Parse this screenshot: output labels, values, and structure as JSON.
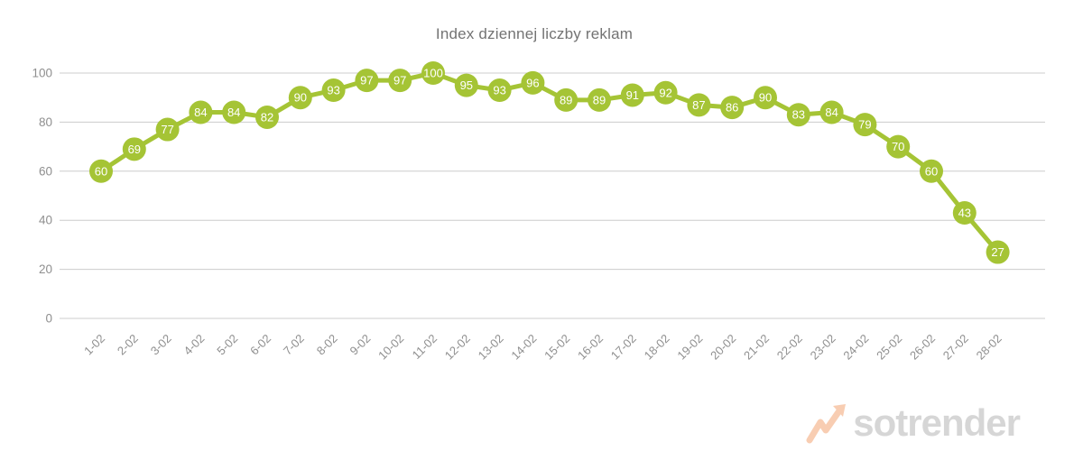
{
  "chart_data": {
    "type": "line",
    "title": "Index dziennej liczby reklam",
    "categories": [
      "1-02",
      "2-02",
      "3-02",
      "4-02",
      "5-02",
      "6-02",
      "7-02",
      "8-02",
      "9-02",
      "10-02",
      "11-02",
      "12-02",
      "13-02",
      "14-02",
      "15-02",
      "16-02",
      "17-02",
      "18-02",
      "19-02",
      "20-02",
      "21-02",
      "22-02",
      "23-02",
      "24-02",
      "25-02",
      "26-02",
      "27-02",
      "28-02"
    ],
    "values": [
      60,
      69,
      77,
      84,
      84,
      82,
      90,
      93,
      97,
      97,
      100,
      95,
      93,
      96,
      89,
      89,
      91,
      92,
      87,
      86,
      90,
      83,
      84,
      79,
      70,
      60,
      43,
      27
    ],
    "xlabel": "",
    "ylabel": "",
    "ylim": [
      0,
      100
    ],
    "yticks": [
      0,
      20,
      40,
      60,
      80,
      100
    ],
    "grid": true,
    "legend_position": "none",
    "point_labels_visible": true
  },
  "colors": {
    "series": "#a5c435",
    "gridline": "#cccccc",
    "axis_label": "#8f8f8f",
    "title": "#737373",
    "point_label": "#ffffff",
    "watermark_text": "#d6d6d6",
    "watermark_icon": "#f8cdb2"
  },
  "watermark": {
    "text": "sotrender",
    "icon": "zigzag-arrow-icon"
  }
}
